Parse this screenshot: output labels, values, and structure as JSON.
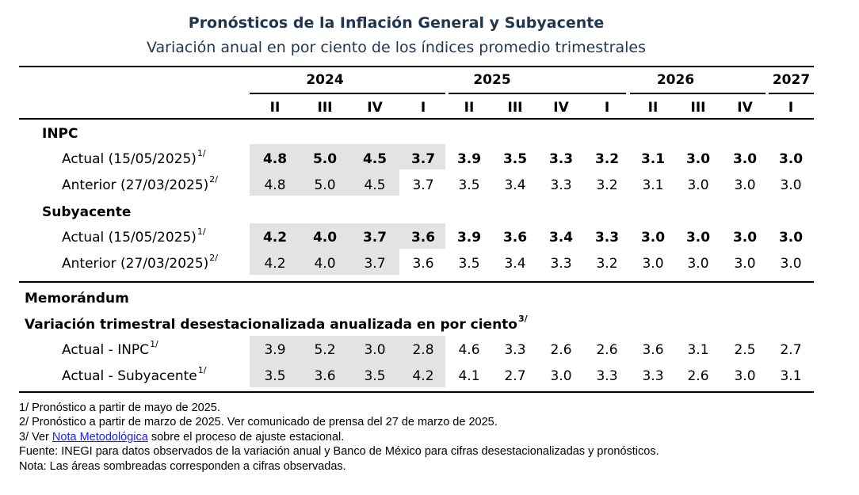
{
  "title": "Pronósticos de la Inflación General y Subyacente",
  "subtitle": "Variación anual en por ciento de los índices promedio trimestrales",
  "years": [
    "2024",
    "2025",
    "2026",
    "2027"
  ],
  "quarters": [
    "II",
    "III",
    "IV",
    "I",
    "II",
    "III",
    "IV",
    "I",
    "II",
    "III",
    "IV",
    "I"
  ],
  "sections": {
    "inpc": "INPC",
    "subyacente": "Subyacente",
    "memo": "Memorándum",
    "memo_sub": "Variación trimestral desestacionalizada anualizada en por ciento",
    "memo_sub_sup": "3/"
  },
  "rows": [
    {
      "label": "Actual (15/05/2025)",
      "sup": "1/",
      "bold": true,
      "values": [
        "4.8",
        "5.0",
        "4.5",
        "3.7",
        "3.9",
        "3.5",
        "3.3",
        "3.2",
        "3.1",
        "3.0",
        "3.0",
        "3.0"
      ]
    },
    {
      "label": "Anterior (27/03/2025)",
      "sup": "2/",
      "bold": false,
      "values": [
        "4.8",
        "5.0",
        "4.5",
        "3.7",
        "3.5",
        "3.4",
        "3.3",
        "3.2",
        "3.1",
        "3.0",
        "3.0",
        "3.0"
      ]
    },
    {
      "label": "Actual (15/05/2025)",
      "sup": "1/",
      "bold": true,
      "values": [
        "4.2",
        "4.0",
        "3.7",
        "3.6",
        "3.9",
        "3.6",
        "3.4",
        "3.3",
        "3.0",
        "3.0",
        "3.0",
        "3.0"
      ]
    },
    {
      "label": "Anterior (27/03/2025)",
      "sup": "2/",
      "bold": false,
      "values": [
        "4.2",
        "4.0",
        "3.7",
        "3.6",
        "3.5",
        "3.4",
        "3.3",
        "3.2",
        "3.0",
        "3.0",
        "3.0",
        "3.0"
      ]
    },
    {
      "label": "Actual - INPC",
      "sup": "1/",
      "bold": false,
      "values": [
        "3.9",
        "5.2",
        "3.0",
        "2.8",
        "4.6",
        "3.3",
        "2.6",
        "2.6",
        "3.6",
        "3.1",
        "2.5",
        "2.7"
      ]
    },
    {
      "label": "Actual - Subyacente",
      "sup": "1/",
      "bold": false,
      "values": [
        "3.5",
        "3.6",
        "3.5",
        "4.2",
        "4.1",
        "2.7",
        "3.0",
        "3.3",
        "3.3",
        "2.6",
        "3.0",
        "3.1"
      ]
    }
  ],
  "notes": {
    "n1": "1/ Pronóstico a partir de mayo de 2025.",
    "n2": "2/ Pronóstico a partir de marzo de 2025. Ver comunicado de prensa del 27 de marzo de 2025.",
    "n3_pre": "3/ Ver ",
    "n3_link": "Nota Metodológica",
    "n3_post": " sobre el proceso de ajuste estacional.",
    "fuente": "Fuente: INEGI para datos observados de la variación anual y Banco de México para cifras desestacionalizadas y pronósticos.",
    "nota": "Nota: Las áreas sombreadas corresponden a cifras observadas."
  }
}
